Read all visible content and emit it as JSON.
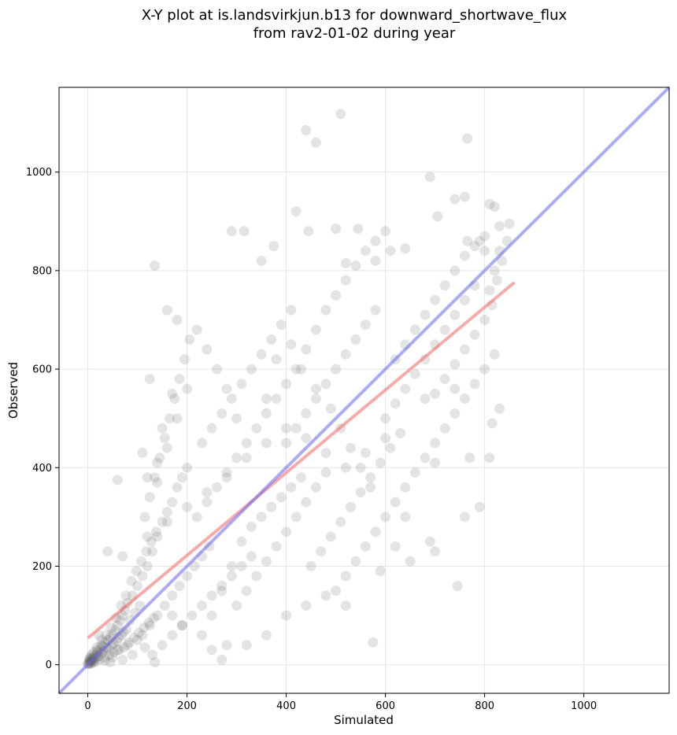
{
  "chart_data": {
    "type": "scatter",
    "title": "X-Y plot at is.landsvirkjun.b13 for downward_shortwave_flux",
    "subtitle": "from rav2-01-02 during year",
    "xlabel": "Simulated",
    "ylabel": "Observed",
    "xlim": [
      -58,
      1172
    ],
    "ylim": [
      -58,
      1172
    ],
    "xticks": [
      "0",
      "200",
      "400",
      "600",
      "800",
      "1000"
    ],
    "yticks": [
      "0",
      "200",
      "400",
      "600",
      "800",
      "1000"
    ],
    "grid": true,
    "point_color": "#555555",
    "one_to_one_color": "#6666ee",
    "fit_color": "#ee6666",
    "one_to_one_line": {
      "x": [
        -58,
        1172
      ],
      "y": [
        -58,
        1172
      ]
    },
    "fit_line": {
      "x": [
        0,
        860
      ],
      "y": [
        54,
        776
      ]
    },
    "points": [
      [
        2,
        3
      ],
      [
        4,
        6
      ],
      [
        5,
        4
      ],
      [
        6,
        8
      ],
      [
        8,
        10
      ],
      [
        10,
        7
      ],
      [
        12,
        15
      ],
      [
        14,
        12
      ],
      [
        16,
        20
      ],
      [
        18,
        16
      ],
      [
        20,
        25
      ],
      [
        22,
        18
      ],
      [
        25,
        30
      ],
      [
        28,
        24
      ],
      [
        30,
        38
      ],
      [
        32,
        28
      ],
      [
        35,
        45
      ],
      [
        38,
        35
      ],
      [
        40,
        50
      ],
      [
        42,
        32
      ],
      [
        45,
        55
      ],
      [
        48,
        40
      ],
      [
        50,
        62
      ],
      [
        52,
        44
      ],
      [
        55,
        70
      ],
      [
        58,
        48
      ],
      [
        60,
        80
      ],
      [
        62,
        55
      ],
      [
        65,
        90
      ],
      [
        68,
        60
      ],
      [
        70,
        100
      ],
      [
        72,
        66
      ],
      [
        75,
        110
      ],
      [
        78,
        72
      ],
      [
        80,
        125
      ],
      [
        85,
        90
      ],
      [
        90,
        140
      ],
      [
        95,
        105
      ],
      [
        100,
        160
      ],
      [
        105,
        120
      ],
      [
        3,
        12
      ],
      [
        6,
        2
      ],
      [
        9,
        14
      ],
      [
        11,
        4
      ],
      [
        15,
        6
      ],
      [
        19,
        30
      ],
      [
        24,
        10
      ],
      [
        27,
        40
      ],
      [
        33,
        15
      ],
      [
        37,
        60
      ],
      [
        43,
        20
      ],
      [
        47,
        75
      ],
      [
        53,
        25
      ],
      [
        57,
        95
      ],
      [
        63,
        30
      ],
      [
        67,
        120
      ],
      [
        73,
        35
      ],
      [
        77,
        140
      ],
      [
        83,
        45
      ],
      [
        88,
        170
      ],
      [
        93,
        55
      ],
      [
        98,
        190
      ],
      [
        103,
        65
      ],
      [
        108,
        210
      ],
      [
        113,
        75
      ],
      [
        118,
        230
      ],
      [
        123,
        85
      ],
      [
        128,
        250
      ],
      [
        133,
        95
      ],
      [
        138,
        270
      ],
      [
        110,
        180
      ],
      [
        120,
        200
      ],
      [
        130,
        230
      ],
      [
        140,
        260
      ],
      [
        150,
        290
      ],
      [
        160,
        310
      ],
      [
        170,
        330
      ],
      [
        180,
        360
      ],
      [
        190,
        380
      ],
      [
        200,
        400
      ],
      [
        115,
        300
      ],
      [
        125,
        340
      ],
      [
        135,
        380
      ],
      [
        145,
        420
      ],
      [
        155,
        460
      ],
      [
        165,
        500
      ],
      [
        175,
        540
      ],
      [
        185,
        580
      ],
      [
        195,
        620
      ],
      [
        205,
        660
      ],
      [
        110,
        60
      ],
      [
        125,
        80
      ],
      [
        140,
        100
      ],
      [
        155,
        120
      ],
      [
        170,
        140
      ],
      [
        185,
        160
      ],
      [
        200,
        180
      ],
      [
        215,
        200
      ],
      [
        230,
        220
      ],
      [
        245,
        240
      ],
      [
        150,
        40
      ],
      [
        170,
        60
      ],
      [
        190,
        80
      ],
      [
        210,
        100
      ],
      [
        230,
        120
      ],
      [
        250,
        140
      ],
      [
        270,
        160
      ],
      [
        290,
        180
      ],
      [
        310,
        200
      ],
      [
        330,
        220
      ],
      [
        220,
        300
      ],
      [
        240,
        330
      ],
      [
        260,
        360
      ],
      [
        280,
        390
      ],
      [
        300,
        420
      ],
      [
        320,
        450
      ],
      [
        340,
        480
      ],
      [
        360,
        510
      ],
      [
        380,
        540
      ],
      [
        400,
        570
      ],
      [
        230,
        450
      ],
      [
        250,
        480
      ],
      [
        270,
        510
      ],
      [
        290,
        540
      ],
      [
        310,
        570
      ],
      [
        330,
        600
      ],
      [
        350,
        630
      ],
      [
        370,
        660
      ],
      [
        390,
        690
      ],
      [
        410,
        720
      ],
      [
        250,
        100
      ],
      [
        270,
        150
      ],
      [
        290,
        200
      ],
      [
        310,
        250
      ],
      [
        330,
        280
      ],
      [
        350,
        300
      ],
      [
        370,
        320
      ],
      [
        390,
        340
      ],
      [
        410,
        360
      ],
      [
        430,
        380
      ],
      [
        300,
        120
      ],
      [
        320,
        150
      ],
      [
        340,
        180
      ],
      [
        360,
        210
      ],
      [
        380,
        240
      ],
      [
        400,
        270
      ],
      [
        420,
        300
      ],
      [
        440,
        330
      ],
      [
        460,
        360
      ],
      [
        480,
        390
      ],
      [
        400,
        450
      ],
      [
        420,
        480
      ],
      [
        440,
        510
      ],
      [
        460,
        540
      ],
      [
        480,
        570
      ],
      [
        500,
        600
      ],
      [
        520,
        630
      ],
      [
        540,
        660
      ],
      [
        560,
        690
      ],
      [
        580,
        720
      ],
      [
        420,
        600
      ],
      [
        440,
        640
      ],
      [
        460,
        680
      ],
      [
        480,
        720
      ],
      [
        500,
        750
      ],
      [
        520,
        780
      ],
      [
        540,
        810
      ],
      [
        560,
        840
      ],
      [
        580,
        860
      ],
      [
        600,
        880
      ],
      [
        450,
        200
      ],
      [
        470,
        230
      ],
      [
        490,
        260
      ],
      [
        510,
        290
      ],
      [
        530,
        320
      ],
      [
        550,
        350
      ],
      [
        570,
        380
      ],
      [
        590,
        410
      ],
      [
        610,
        440
      ],
      [
        630,
        470
      ],
      [
        500,
        150
      ],
      [
        520,
        180
      ],
      [
        540,
        210
      ],
      [
        560,
        240
      ],
      [
        580,
        270
      ],
      [
        600,
        300
      ],
      [
        620,
        330
      ],
      [
        640,
        360
      ],
      [
        660,
        390
      ],
      [
        680,
        420
      ],
      [
        600,
        500
      ],
      [
        620,
        530
      ],
      [
        640,
        560
      ],
      [
        660,
        590
      ],
      [
        680,
        620
      ],
      [
        700,
        650
      ],
      [
        720,
        680
      ],
      [
        740,
        710
      ],
      [
        760,
        740
      ],
      [
        780,
        770
      ],
      [
        620,
        620
      ],
      [
        640,
        650
      ],
      [
        660,
        680
      ],
      [
        680,
        710
      ],
      [
        700,
        740
      ],
      [
        720,
        770
      ],
      [
        740,
        800
      ],
      [
        760,
        830
      ],
      [
        780,
        850
      ],
      [
        800,
        870
      ],
      [
        700,
        450
      ],
      [
        720,
        480
      ],
      [
        740,
        510
      ],
      [
        760,
        540
      ],
      [
        780,
        570
      ],
      [
        800,
        600
      ],
      [
        820,
        630
      ],
      [
        810,
        760
      ],
      [
        820,
        800
      ],
      [
        830,
        840
      ],
      [
        700,
        550
      ],
      [
        720,
        580
      ],
      [
        740,
        610
      ],
      [
        760,
        640
      ],
      [
        780,
        670
      ],
      [
        800,
        700
      ],
      [
        815,
        730
      ],
      [
        825,
        780
      ],
      [
        835,
        820
      ],
      [
        845,
        860
      ],
      [
        135,
        810
      ],
      [
        160,
        720
      ],
      [
        180,
        700
      ],
      [
        290,
        880
      ],
      [
        315,
        880
      ],
      [
        350,
        820
      ],
      [
        375,
        850
      ],
      [
        420,
        920
      ],
      [
        445,
        880
      ],
      [
        440,
        1085
      ],
      [
        460,
        1060
      ],
      [
        510,
        1118
      ],
      [
        500,
        885
      ],
      [
        520,
        815
      ],
      [
        545,
        885
      ],
      [
        580,
        820
      ],
      [
        610,
        840
      ],
      [
        640,
        845
      ],
      [
        690,
        990
      ],
      [
        705,
        910
      ],
      [
        740,
        945
      ],
      [
        760,
        950
      ],
      [
        765,
        1068
      ],
      [
        810,
        935
      ],
      [
        820,
        930
      ],
      [
        830,
        890
      ],
      [
        850,
        895
      ],
      [
        765,
        860
      ],
      [
        790,
        860
      ],
      [
        800,
        840
      ],
      [
        110,
        430
      ],
      [
        125,
        580
      ],
      [
        150,
        480
      ],
      [
        170,
        550
      ],
      [
        140,
        370
      ],
      [
        60,
        375
      ],
      [
        70,
        220
      ],
      [
        40,
        230
      ],
      [
        170,
        100
      ],
      [
        190,
        80
      ],
      [
        230,
        60
      ],
      [
        250,
        30
      ],
      [
        270,
        10
      ],
      [
        280,
        40
      ],
      [
        320,
        40
      ],
      [
        360,
        60
      ],
      [
        400,
        100
      ],
      [
        440,
        120
      ],
      [
        480,
        140
      ],
      [
        520,
        120
      ],
      [
        575,
        45
      ],
      [
        590,
        190
      ],
      [
        620,
        240
      ],
      [
        650,
        210
      ],
      [
        700,
        230
      ],
      [
        745,
        160
      ],
      [
        690,
        250
      ],
      [
        640,
        300
      ],
      [
        760,
        300
      ],
      [
        790,
        320
      ],
      [
        700,
        410
      ],
      [
        770,
        420
      ],
      [
        810,
        420
      ],
      [
        815,
        490
      ],
      [
        830,
        520
      ],
      [
        740,
        560
      ],
      [
        680,
        540
      ],
      [
        600,
        460
      ],
      [
        560,
        430
      ],
      [
        520,
        400
      ],
      [
        480,
        430
      ],
      [
        440,
        460
      ],
      [
        400,
        480
      ],
      [
        360,
        450
      ],
      [
        320,
        420
      ],
      [
        280,
        380
      ],
      [
        240,
        350
      ],
      [
        200,
        320
      ],
      [
        160,
        290
      ],
      [
        120,
        260
      ],
      [
        100,
        50
      ],
      [
        115,
        35
      ],
      [
        130,
        20
      ],
      [
        135,
        5
      ],
      [
        90,
        20
      ],
      [
        80,
        40
      ],
      [
        70,
        10
      ],
      [
        60,
        30
      ],
      [
        50,
        15
      ],
      [
        45,
        5
      ],
      [
        35,
        8
      ],
      [
        28,
        50
      ],
      [
        22,
        60
      ],
      [
        18,
        35
      ],
      [
        12,
        25
      ],
      [
        8,
        20
      ],
      [
        5,
        15
      ],
      [
        3,
        9
      ],
      [
        1,
        1
      ],
      [
        0,
        2
      ],
      [
        360,
        540
      ],
      [
        380,
        620
      ],
      [
        410,
        650
      ],
      [
        430,
        600
      ],
      [
        460,
        560
      ],
      [
        490,
        520
      ],
      [
        510,
        480
      ],
      [
        530,
        440
      ],
      [
        550,
        400
      ],
      [
        570,
        360
      ],
      [
        300,
        500
      ],
      [
        280,
        560
      ],
      [
        260,
        600
      ],
      [
        240,
        640
      ],
      [
        220,
        680
      ],
      [
        200,
        560
      ],
      [
        180,
        500
      ],
      [
        160,
        440
      ],
      [
        140,
        410
      ],
      [
        120,
        380
      ]
    ]
  }
}
